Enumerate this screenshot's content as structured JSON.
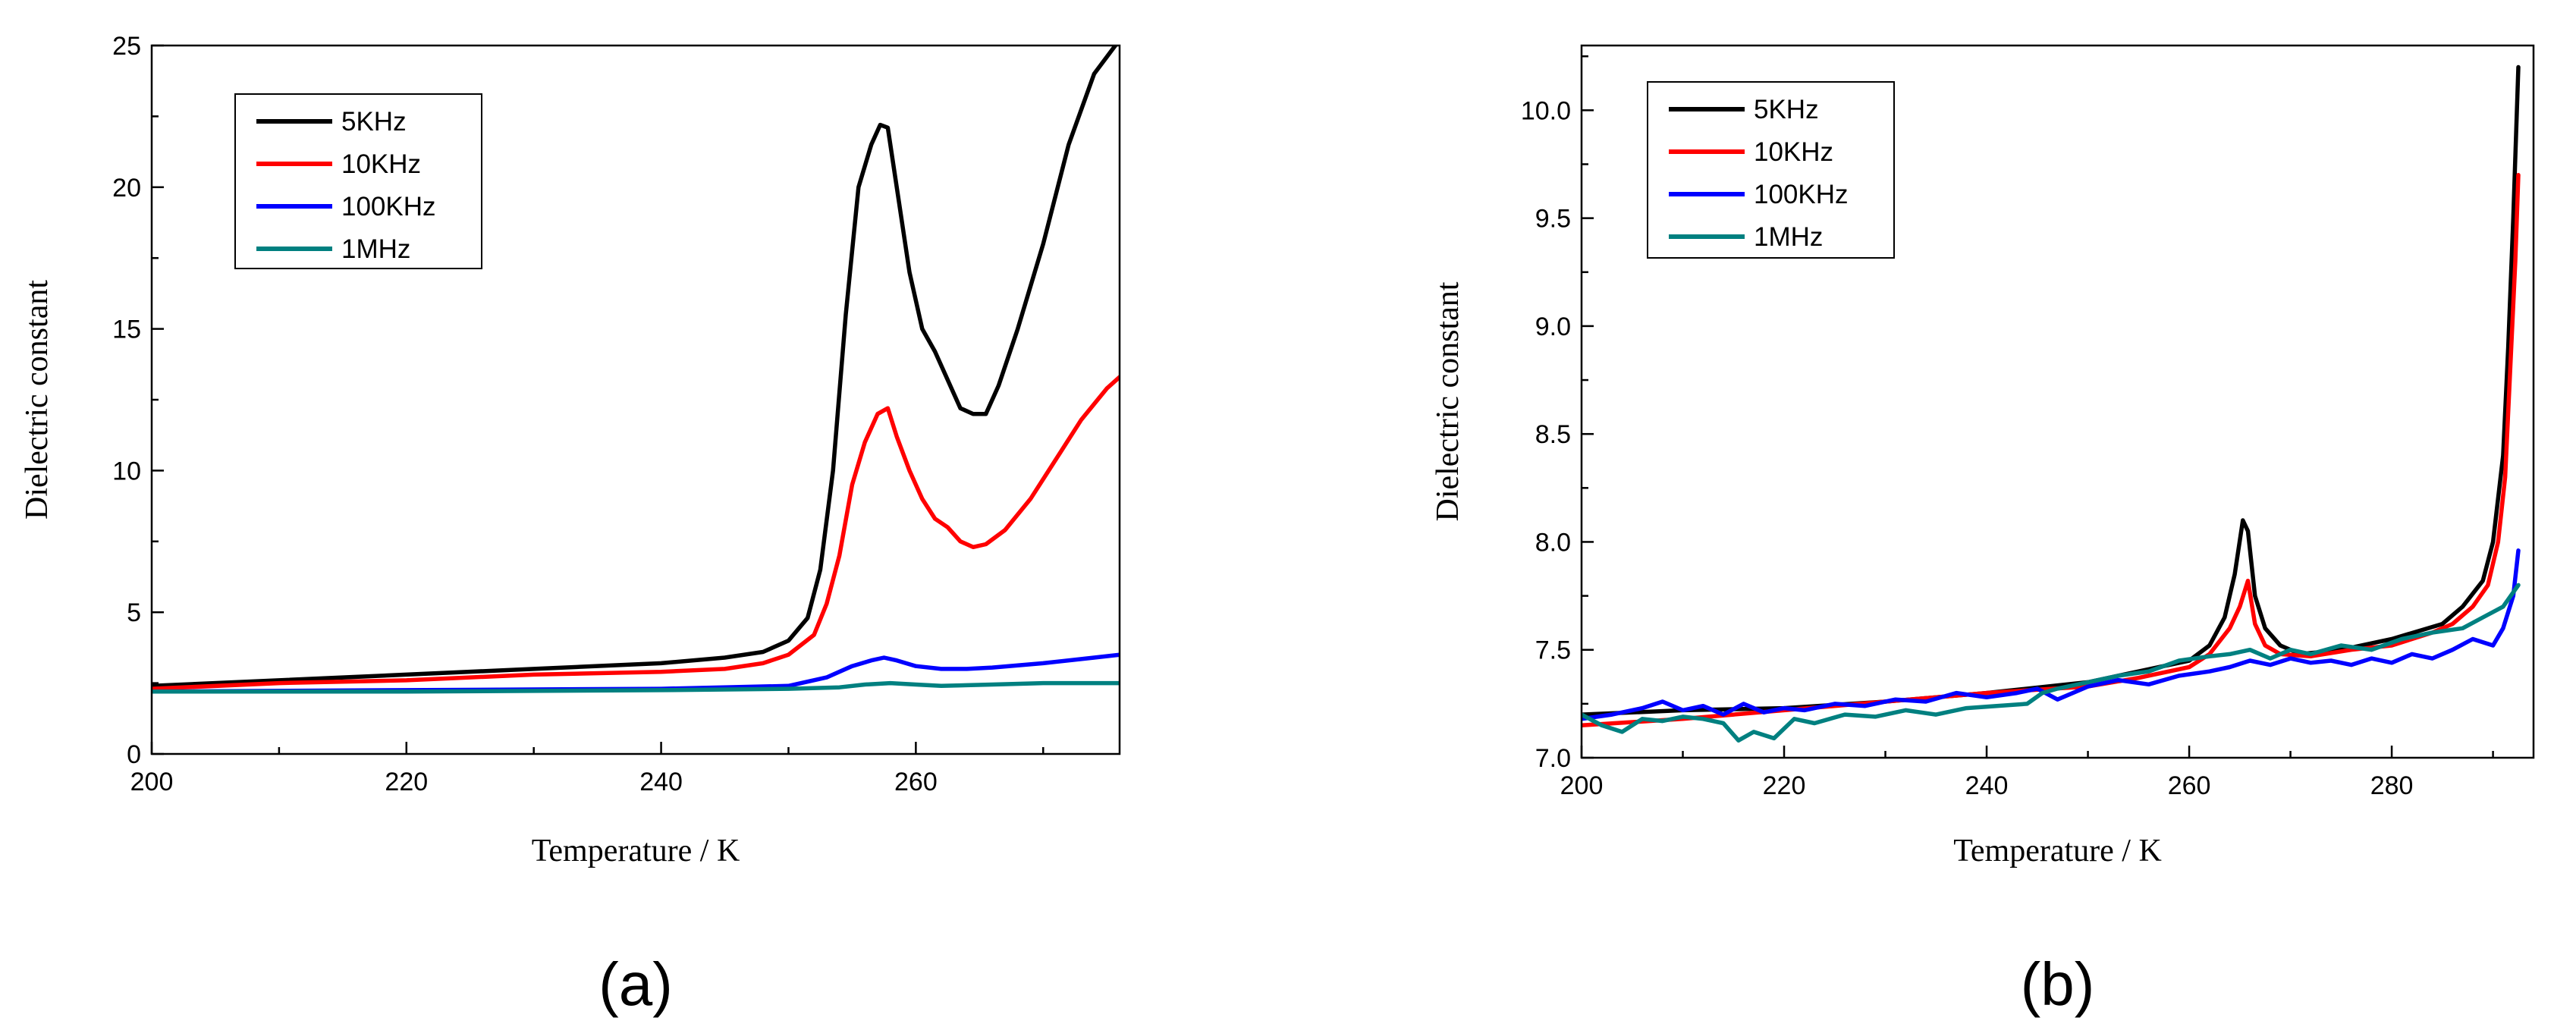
{
  "chart_data": [
    {
      "type": "line",
      "caption": "(a)",
      "xlabel": "Temperature / K",
      "ylabel": "Dielectric constant",
      "xlim": [
        200,
        276
      ],
      "ylim": [
        0,
        25
      ],
      "xticks": [
        200,
        220,
        240,
        260
      ],
      "yticks": [
        0,
        5,
        10,
        15,
        20,
        25
      ],
      "legend": "top-left",
      "series": [
        {
          "name": "5KHz",
          "color": "#000000",
          "x": [
            200,
            210,
            220,
            230,
            240,
            245,
            248,
            250,
            251.5,
            252.5,
            253.5,
            254.5,
            255.5,
            256.5,
            257.2,
            257.8,
            258.5,
            259.5,
            260.5,
            261.5,
            262.5,
            263.5,
            264.5,
            265.5,
            266.5,
            268,
            270,
            272,
            274,
            276
          ],
          "y": [
            2.4,
            2.6,
            2.8,
            3.0,
            3.2,
            3.4,
            3.6,
            4.0,
            4.8,
            6.5,
            10.0,
            15.5,
            20.0,
            21.5,
            22.2,
            22.1,
            20.0,
            17.0,
            15.0,
            14.2,
            13.2,
            12.2,
            12.0,
            12.0,
            13.0,
            15.0,
            18.0,
            21.5,
            24.0,
            25.2
          ]
        },
        {
          "name": "10KHz",
          "color": "#ff0000",
          "x": [
            200,
            210,
            220,
            230,
            240,
            245,
            248,
            250,
            252,
            253,
            254,
            255,
            256,
            257,
            257.8,
            258.5,
            259.5,
            260.5,
            261.5,
            262.5,
            263.5,
            264.5,
            265.5,
            267,
            269,
            271,
            273,
            275,
            276
          ],
          "y": [
            2.3,
            2.5,
            2.6,
            2.8,
            2.9,
            3.0,
            3.2,
            3.5,
            4.2,
            5.3,
            7.0,
            9.5,
            11.0,
            12.0,
            12.2,
            11.2,
            10.0,
            9.0,
            8.3,
            8.0,
            7.5,
            7.3,
            7.4,
            7.9,
            9.0,
            10.4,
            11.8,
            12.9,
            13.3
          ]
        },
        {
          "name": "100KHz",
          "color": "#0000ff",
          "x": [
            200,
            220,
            240,
            250,
            253,
            255,
            256.5,
            257.5,
            258.5,
            260,
            262,
            264,
            266,
            270,
            274,
            276
          ],
          "y": [
            2.2,
            2.25,
            2.3,
            2.4,
            2.7,
            3.1,
            3.3,
            3.4,
            3.3,
            3.1,
            3.0,
            3.0,
            3.05,
            3.2,
            3.4,
            3.5
          ]
        },
        {
          "name": "1MHz",
          "color": "#008080",
          "x": [
            200,
            220,
            240,
            250,
            254,
            256,
            258,
            260,
            262,
            266,
            270,
            276
          ],
          "y": [
            2.2,
            2.2,
            2.25,
            2.3,
            2.35,
            2.45,
            2.5,
            2.45,
            2.4,
            2.45,
            2.5,
            2.5
          ]
        }
      ]
    },
    {
      "type": "line",
      "caption": "(b)",
      "xlabel": "Temperature / K",
      "ylabel": "Dielectric constant",
      "xlim": [
        200,
        294
      ],
      "ylim": [
        7.0,
        10.3
      ],
      "xticks": [
        200,
        220,
        240,
        260,
        280
      ],
      "yticks": [
        7.0,
        7.5,
        8.0,
        8.5,
        9.0,
        9.5,
        10.0
      ],
      "legend": "top-left",
      "series": [
        {
          "name": "5KHz",
          "color": "#000000",
          "x": [
            200,
            210,
            220,
            230,
            240,
            250,
            255,
            260,
            262,
            263.5,
            264.5,
            265.3,
            265.8,
            266.5,
            267.5,
            269,
            271,
            275,
            280,
            285,
            287,
            289,
            290,
            291,
            291.5,
            292,
            292.5
          ],
          "y": [
            7.2,
            7.22,
            7.23,
            7.26,
            7.3,
            7.35,
            7.4,
            7.45,
            7.52,
            7.65,
            7.85,
            8.1,
            8.05,
            7.75,
            7.6,
            7.52,
            7.48,
            7.5,
            7.55,
            7.62,
            7.7,
            7.82,
            8.0,
            8.4,
            8.9,
            9.5,
            10.2
          ]
        },
        {
          "name": "10KHz",
          "color": "#ff0000",
          "x": [
            200,
            210,
            220,
            230,
            240,
            250,
            255,
            260,
            262,
            264,
            265,
            265.8,
            266.5,
            267.5,
            269,
            272,
            276,
            280,
            284,
            286,
            288,
            289.5,
            290.5,
            291.2,
            291.7,
            292.2,
            292.5
          ],
          "y": [
            7.15,
            7.18,
            7.22,
            7.26,
            7.3,
            7.33,
            7.37,
            7.42,
            7.48,
            7.6,
            7.7,
            7.82,
            7.62,
            7.52,
            7.48,
            7.47,
            7.5,
            7.52,
            7.58,
            7.62,
            7.7,
            7.8,
            8.0,
            8.3,
            8.8,
            9.3,
            9.7
          ]
        },
        {
          "name": "100KHz",
          "color": "#0000ff",
          "x": [
            200,
            203,
            206,
            208,
            210,
            212,
            214,
            216,
            218,
            220,
            222,
            225,
            228,
            231,
            234,
            237,
            240,
            243,
            245,
            247,
            250,
            253,
            256,
            259,
            262,
            264,
            266,
            268,
            270,
            272,
            274,
            276,
            278,
            280,
            282,
            284,
            286,
            288,
            290,
            291,
            292,
            292.5
          ],
          "y": [
            7.18,
            7.2,
            7.23,
            7.26,
            7.22,
            7.24,
            7.2,
            7.25,
            7.21,
            7.23,
            7.22,
            7.25,
            7.24,
            7.27,
            7.26,
            7.3,
            7.28,
            7.3,
            7.32,
            7.27,
            7.33,
            7.36,
            7.34,
            7.38,
            7.4,
            7.42,
            7.45,
            7.43,
            7.46,
            7.44,
            7.45,
            7.43,
            7.46,
            7.44,
            7.48,
            7.46,
            7.5,
            7.55,
            7.52,
            7.6,
            7.75,
            7.96
          ]
        },
        {
          "name": "1MHz",
          "color": "#008080",
          "x": [
            200,
            202,
            204,
            206,
            208,
            210,
            212,
            214,
            215.5,
            217,
            219,
            221,
            223,
            226,
            229,
            232,
            235,
            238,
            241,
            244,
            245.5,
            247,
            250,
            253,
            256,
            259,
            262,
            264,
            266,
            268,
            270,
            272,
            275,
            278,
            281,
            284,
            287,
            289,
            291,
            292.5
          ],
          "y": [
            7.2,
            7.15,
            7.12,
            7.18,
            7.17,
            7.19,
            7.18,
            7.16,
            7.08,
            7.12,
            7.09,
            7.18,
            7.16,
            7.2,
            7.19,
            7.22,
            7.2,
            7.23,
            7.24,
            7.25,
            7.3,
            7.32,
            7.35,
            7.38,
            7.4,
            7.45,
            7.47,
            7.48,
            7.5,
            7.46,
            7.5,
            7.48,
            7.52,
            7.5,
            7.55,
            7.58,
            7.6,
            7.65,
            7.7,
            7.8
          ]
        }
      ]
    }
  ]
}
